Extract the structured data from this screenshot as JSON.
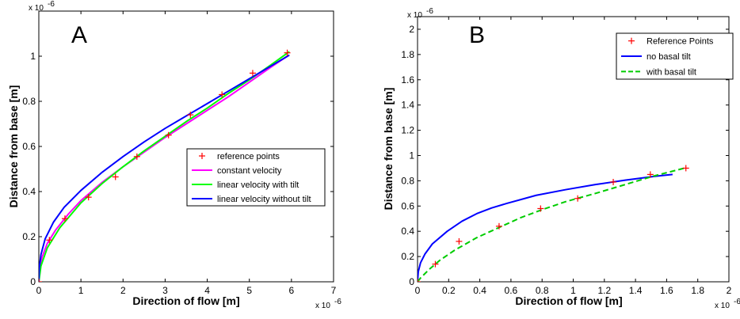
{
  "chart_data": [
    {
      "type": "line",
      "panel_label": "A",
      "xlabel": "Direction of flow [m]",
      "ylabel": "Distance from base [m]",
      "x_exponent": "x 10",
      "x_exponent_power": "-6",
      "y_exponent": "x 10",
      "y_exponent_power": "-6",
      "xlim": [
        0,
        7e-06
      ],
      "ylim": [
        0,
        1.2e-06
      ],
      "x_ticks": [
        "0",
        "1",
        "2",
        "3",
        "4",
        "5",
        "6",
        "7"
      ],
      "y_ticks": [
        "0",
        "0.2",
        "0.4",
        "0.6",
        "0.8",
        "1"
      ],
      "grid": false,
      "legend_position": "inside-right",
      "series": [
        {
          "name": "reference points",
          "style": "markers",
          "marker": "+",
          "color": "#ff0000",
          "x": [
            0,
            2.5e-07,
            6.2e-07,
            1.18e-06,
            1.82e-06,
            2.33e-06,
            3.08e-06,
            3.6e-06,
            4.35e-06,
            5.08e-06,
            5.9e-06
          ],
          "y": [
            0,
            1.85e-07,
            2.8e-07,
            3.75e-07,
            4.65e-07,
            5.55e-07,
            6.5e-07,
            7.4e-07,
            8.3e-07,
            9.25e-07,
            1.015e-06
          ]
        },
        {
          "name": "constant velocity",
          "style": "line",
          "color": "#ff00ff",
          "x": [
            0,
            2e-08,
            8e-08,
            2e-07,
            4e-07,
            7e-07,
            1e-06,
            1.5e-06,
            2e-06,
            2.5e-06,
            3e-06,
            3.5e-06,
            4e-06,
            4.5e-06,
            5e-06,
            5.5e-06,
            5.9e-06
          ],
          "y": [
            0,
            6e-08,
            1.1e-07,
            1.7e-07,
            2.3e-07,
            3e-07,
            3.6e-07,
            4.4e-07,
            5.1e-07,
            5.75e-07,
            6.4e-07,
            7e-07,
            7.6e-07,
            8.2e-07,
            8.85e-07,
            9.5e-07,
            1e-06
          ]
        },
        {
          "name": "linear velocity with tilt",
          "style": "line",
          "color": "#00ff00",
          "x": [
            0,
            5e-08,
            2e-07,
            5e-07,
            1e-06,
            1.5e-06,
            2e-06,
            2.5e-06,
            3e-06,
            3.5e-06,
            4e-06,
            4.5e-06,
            5e-06,
            5.5e-06,
            5.95e-06
          ],
          "y": [
            0,
            7e-08,
            1.5e-07,
            2.4e-07,
            3.5e-07,
            4.35e-07,
            5.1e-07,
            5.8e-07,
            6.45e-07,
            7.1e-07,
            7.7e-07,
            8.35e-07,
            8.95e-07,
            9.6e-07,
            1.02e-06
          ]
        },
        {
          "name": "linear velocity without tilt",
          "style": "line",
          "color": "#0000ff",
          "x": [
            0,
            1e-08,
            5e-08,
            1.5e-07,
            3.5e-07,
            6e-07,
            1e-06,
            1.5e-06,
            2e-06,
            2.5e-06,
            3e-06,
            3.5e-06,
            4e-06,
            4.5e-06,
            5e-06,
            5.5e-06,
            5.95e-06
          ],
          "y": [
            0,
            6e-08,
            1.2e-07,
            1.9e-07,
            2.65e-07,
            3.3e-07,
            4.05e-07,
            4.85e-07,
            5.55e-07,
            6.2e-07,
            6.8e-07,
            7.35e-07,
            7.9e-07,
            8.45e-07,
            9e-07,
            9.55e-07,
            1.005e-06
          ]
        }
      ]
    },
    {
      "type": "line",
      "panel_label": "B",
      "xlabel": "Direction of flow [m]",
      "ylabel": "Distance from base [m]",
      "x_exponent": "x 10",
      "x_exponent_power": "-6",
      "y_exponent": "x 10",
      "y_exponent_power": "-6",
      "xlim": [
        0,
        2.1e-06
      ],
      "ylim": [
        0,
        2.1e-06
      ],
      "x_ticks": [
        "0",
        "0.2",
        "0.4",
        "0.6",
        "0.8",
        "1",
        "1.2",
        "1.4",
        "1.6",
        "1.8",
        "2"
      ],
      "y_ticks": [
        "0",
        "0.2",
        "0.4",
        "0.6",
        "0.8",
        "1",
        "1.2",
        "1.4",
        "1.6",
        "1.8",
        "2"
      ],
      "grid": false,
      "legend_position": "top-right",
      "series": [
        {
          "name": "Reference Points",
          "style": "markers",
          "marker": "+",
          "color": "#ff0000",
          "x": [
            0,
            1.2e-07,
            2.8e-07,
            5.5e-07,
            8.3e-07,
            1.08e-06,
            1.32e-06,
            1.57e-06,
            1.81e-06
          ],
          "y": [
            0,
            1.4e-07,
            3.2e-07,
            4.4e-07,
            5.8e-07,
            6.6e-07,
            7.9e-07,
            8.5e-07,
            9e-07
          ]
        },
        {
          "name": "no basal tilt",
          "style": "line",
          "color": "#0000ff",
          "x": [
            0,
            5e-09,
            2e-08,
            5e-08,
            1e-07,
            2e-07,
            3e-07,
            4e-07,
            5e-07,
            6e-07,
            8e-07,
            1e-06,
            1.2e-06,
            1.4e-06,
            1.6e-06,
            1.72e-06
          ],
          "y": [
            0,
            8e-08,
            1.5e-07,
            2.2e-07,
            3e-07,
            4e-07,
            4.8e-07,
            5.4e-07,
            5.85e-07,
            6.2e-07,
            6.85e-07,
            7.3e-07,
            7.7e-07,
            8.05e-07,
            8.35e-07,
            8.5e-07
          ]
        },
        {
          "name": "with basal tilt",
          "style": "dashed",
          "color": "#00cc00",
          "x": [
            0,
            2e-08,
            8e-08,
            1.5e-07,
            2.5e-07,
            4e-07,
            5.5e-07,
            7e-07,
            8.5e-07,
            1e-06,
            1.2e-06,
            1.4e-06,
            1.6e-06,
            1.8e-06
          ],
          "y": [
            0,
            3e-08,
            1e-07,
            1.7e-07,
            2.5e-07,
            3.5e-07,
            4.3e-07,
            5.1e-07,
            5.75e-07,
            6.35e-07,
            7e-07,
            7.7e-07,
            8.4e-07,
            9e-07
          ]
        }
      ]
    }
  ]
}
